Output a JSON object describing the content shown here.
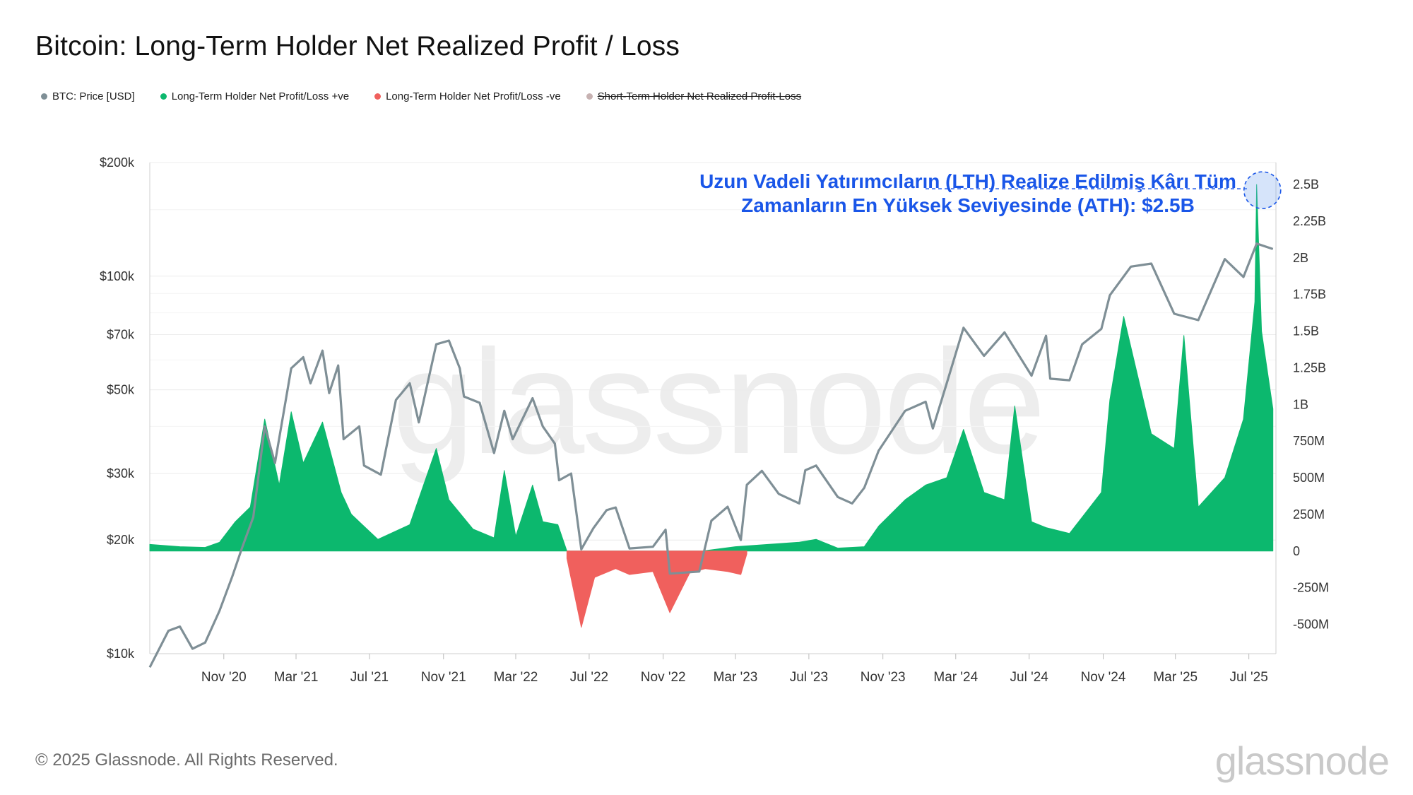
{
  "header": {
    "title": "Bitcoin: Long-Term Holder Net Realized Profit / Loss"
  },
  "legend": [
    {
      "label": "BTC: Price [USD]",
      "color": "#7f8f96",
      "struck": false
    },
    {
      "label": "Long-Term Holder Net Profit/Loss +ve",
      "color": "#0cb86e",
      "struck": false
    },
    {
      "label": "Long-Term Holder Net Profit/Loss -ve",
      "color": "#f0605d",
      "struck": false
    },
    {
      "label": "Short-Term Holder Net Realized Profit-Loss",
      "color": "#c7b2b2",
      "struck": true
    }
  ],
  "annotation": {
    "line1": "Uzun Vadeli Yatırımcıların (LTH) Realize Edilmiş Kârı Tüm",
    "line2": "Zamanların En Yüksek Seviyesinde (ATH): $2.5B",
    "color": "#1a56e8"
  },
  "watermark": "glassnode",
  "footer": {
    "copyright": "© 2025 Glassnode. All Rights Reserved.",
    "brand": "glassnode"
  },
  "chart_data": {
    "type": "line",
    "x_tick_labels": [
      "Nov '20",
      "Mar '21",
      "Jul '21",
      "Nov '21",
      "Mar '22",
      "Jul '22",
      "Nov '22",
      "Mar '23",
      "Jul '23",
      "Nov '23",
      "Mar '24",
      "Jul '24",
      "Nov '24",
      "Mar '25",
      "Jul '25"
    ],
    "left_axis": {
      "scale": "log",
      "range": [
        10000,
        200000
      ],
      "tick_labels": [
        "$200k",
        "$100k",
        "$70k",
        "$50k",
        "$30k",
        "$20k",
        "$10k"
      ],
      "tick_values": [
        200000,
        100000,
        70000,
        50000,
        30000,
        20000,
        10000
      ]
    },
    "right_axis": {
      "scale": "linear",
      "range": [
        -700000000,
        2650000000
      ],
      "tick_labels": [
        "2.5B",
        "2.25B",
        "2B",
        "1.75B",
        "1.5B",
        "1.25B",
        "1B",
        "750M",
        "500M",
        "250M",
        "0",
        "-250M",
        "-500M"
      ],
      "tick_values": [
        2500000000,
        2250000000,
        2000000000,
        1750000000,
        1500000000,
        1250000000,
        1000000000,
        750000000,
        500000000,
        250000000,
        0,
        -250000000,
        -500000000
      ]
    },
    "x_range": [
      "2020-07-01",
      "2025-08-15"
    ],
    "series": [
      {
        "name": "BTC: Price [USD]",
        "axis": "left",
        "color": "#7f8f96",
        "points": [
          [
            "2020-07-01",
            9200
          ],
          [
            "2020-08-01",
            11500
          ],
          [
            "2020-08-20",
            11800
          ],
          [
            "2020-09-10",
            10300
          ],
          [
            "2020-10-01",
            10700
          ],
          [
            "2020-10-25",
            13000
          ],
          [
            "2020-11-15",
            16000
          ],
          [
            "2020-12-01",
            19000
          ],
          [
            "2020-12-20",
            23000
          ],
          [
            "2021-01-08",
            40000
          ],
          [
            "2021-01-25",
            32000
          ],
          [
            "2021-02-21",
            57000
          ],
          [
            "2021-03-13",
            61000
          ],
          [
            "2021-03-25",
            52000
          ],
          [
            "2021-04-14",
            63500
          ],
          [
            "2021-04-25",
            49000
          ],
          [
            "2021-05-10",
            58000
          ],
          [
            "2021-05-19",
            37000
          ],
          [
            "2021-06-14",
            40000
          ],
          [
            "2021-06-22",
            31500
          ],
          [
            "2021-07-20",
            29800
          ],
          [
            "2021-08-14",
            47000
          ],
          [
            "2021-09-06",
            52000
          ],
          [
            "2021-09-21",
            41000
          ],
          [
            "2021-10-20",
            66000
          ],
          [
            "2021-11-10",
            67500
          ],
          [
            "2021-11-28",
            57000
          ],
          [
            "2021-12-05",
            48000
          ],
          [
            "2021-12-31",
            46200
          ],
          [
            "2022-01-24",
            34000
          ],
          [
            "2022-02-10",
            44000
          ],
          [
            "2022-02-24",
            37000
          ],
          [
            "2022-03-29",
            47500
          ],
          [
            "2022-04-15",
            40000
          ],
          [
            "2022-05-05",
            36000
          ],
          [
            "2022-05-12",
            28800
          ],
          [
            "2022-06-01",
            30000
          ],
          [
            "2022-06-18",
            18900
          ],
          [
            "2022-07-08",
            21500
          ],
          [
            "2022-07-30",
            24000
          ],
          [
            "2022-08-14",
            24400
          ],
          [
            "2022-09-06",
            19000
          ],
          [
            "2022-10-15",
            19200
          ],
          [
            "2022-11-05",
            21300
          ],
          [
            "2022-11-12",
            16300
          ],
          [
            "2022-12-31",
            16500
          ],
          [
            "2023-01-20",
            22500
          ],
          [
            "2023-02-16",
            24500
          ],
          [
            "2023-03-10",
            20000
          ],
          [
            "2023-03-20",
            28000
          ],
          [
            "2023-04-14",
            30500
          ],
          [
            "2023-05-12",
            26500
          ],
          [
            "2023-06-15",
            25000
          ],
          [
            "2023-06-25",
            30600
          ],
          [
            "2023-07-13",
            31500
          ],
          [
            "2023-08-18",
            26000
          ],
          [
            "2023-09-11",
            25000
          ],
          [
            "2023-10-01",
            27500
          ],
          [
            "2023-10-25",
            34500
          ],
          [
            "2023-12-08",
            44000
          ],
          [
            "2024-01-11",
            46500
          ],
          [
            "2024-01-23",
            39500
          ],
          [
            "2024-02-15",
            52000
          ],
          [
            "2024-03-14",
            73000
          ],
          [
            "2024-04-17",
            61500
          ],
          [
            "2024-05-21",
            71000
          ],
          [
            "2024-07-05",
            54500
          ],
          [
            "2024-07-29",
            69500
          ],
          [
            "2024-08-05",
            53500
          ],
          [
            "2024-09-06",
            53000
          ],
          [
            "2024-09-27",
            66000
          ],
          [
            "2024-10-29",
            72500
          ],
          [
            "2024-11-12",
            89000
          ],
          [
            "2024-12-17",
            106000
          ],
          [
            "2025-01-20",
            108000
          ],
          [
            "2025-02-27",
            79500
          ],
          [
            "2025-04-08",
            76500
          ],
          [
            "2025-05-22",
            111000
          ],
          [
            "2025-06-22",
            99500
          ],
          [
            "2025-07-14",
            122000
          ],
          [
            "2025-08-10",
            118000
          ]
        ]
      },
      {
        "name": "Long-Term Holder Net Profit/Loss +ve",
        "axis": "right",
        "color": "#0cb86e",
        "points": [
          [
            "2020-07-01",
            45000000
          ],
          [
            "2020-08-20",
            30000000
          ],
          [
            "2020-10-01",
            25000000
          ],
          [
            "2020-10-25",
            60000000
          ],
          [
            "2020-11-20",
            200000000
          ],
          [
            "2020-12-15",
            300000000
          ],
          [
            "2021-01-08",
            900000000
          ],
          [
            "2021-02-01",
            450000000
          ],
          [
            "2021-02-21",
            950000000
          ],
          [
            "2021-03-13",
            600000000
          ],
          [
            "2021-04-14",
            880000000
          ],
          [
            "2021-05-15",
            400000000
          ],
          [
            "2021-06-01",
            250000000
          ],
          [
            "2021-07-15",
            80000000
          ],
          [
            "2021-09-06",
            180000000
          ],
          [
            "2021-10-20",
            700000000
          ],
          [
            "2021-11-10",
            350000000
          ],
          [
            "2021-12-20",
            150000000
          ],
          [
            "2022-01-24",
            90000000
          ],
          [
            "2022-02-10",
            550000000
          ],
          [
            "2022-03-01",
            100000000
          ],
          [
            "2022-03-29",
            450000000
          ],
          [
            "2022-04-15",
            200000000
          ],
          [
            "2022-05-10",
            180000000
          ],
          [
            "2022-05-25",
            0
          ],
          [
            "2023-01-05",
            0
          ],
          [
            "2023-03-01",
            30000000
          ],
          [
            "2023-06-15",
            60000000
          ],
          [
            "2023-07-13",
            80000000
          ],
          [
            "2023-08-18",
            20000000
          ],
          [
            "2023-10-01",
            30000000
          ],
          [
            "2023-10-25",
            170000000
          ],
          [
            "2023-12-08",
            350000000
          ],
          [
            "2024-01-11",
            450000000
          ],
          [
            "2024-02-15",
            500000000
          ],
          [
            "2024-03-14",
            830000000
          ],
          [
            "2024-04-17",
            400000000
          ],
          [
            "2024-05-21",
            350000000
          ],
          [
            "2024-06-07",
            990000000
          ],
          [
            "2024-07-05",
            200000000
          ],
          [
            "2024-07-29",
            160000000
          ],
          [
            "2024-09-06",
            120000000
          ],
          [
            "2024-10-29",
            400000000
          ],
          [
            "2024-11-12",
            1030000000
          ],
          [
            "2024-12-05",
            1600000000
          ],
          [
            "2025-01-20",
            800000000
          ],
          [
            "2025-02-27",
            700000000
          ],
          [
            "2025-03-15",
            1470000000
          ],
          [
            "2025-04-08",
            300000000
          ],
          [
            "2025-05-22",
            500000000
          ],
          [
            "2025-06-22",
            900000000
          ],
          [
            "2025-07-11",
            1700000000
          ],
          [
            "2025-07-14",
            2500000000
          ],
          [
            "2025-07-22",
            1500000000
          ],
          [
            "2025-08-10",
            970000000
          ]
        ]
      },
      {
        "name": "Long-Term Holder Net Profit/Loss -ve",
        "axis": "right",
        "color": "#f0605d",
        "points": [
          [
            "2022-05-25",
            -50000000
          ],
          [
            "2022-06-18",
            -520000000
          ],
          [
            "2022-07-10",
            -180000000
          ],
          [
            "2022-08-14",
            -120000000
          ],
          [
            "2022-09-06",
            -160000000
          ],
          [
            "2022-10-15",
            -140000000
          ],
          [
            "2022-11-12",
            -420000000
          ],
          [
            "2022-12-15",
            -150000000
          ],
          [
            "2023-01-10",
            -120000000
          ],
          [
            "2023-02-16",
            -140000000
          ],
          [
            "2023-03-10",
            -160000000
          ],
          [
            "2023-03-20",
            -20000000
          ]
        ]
      }
    ]
  }
}
